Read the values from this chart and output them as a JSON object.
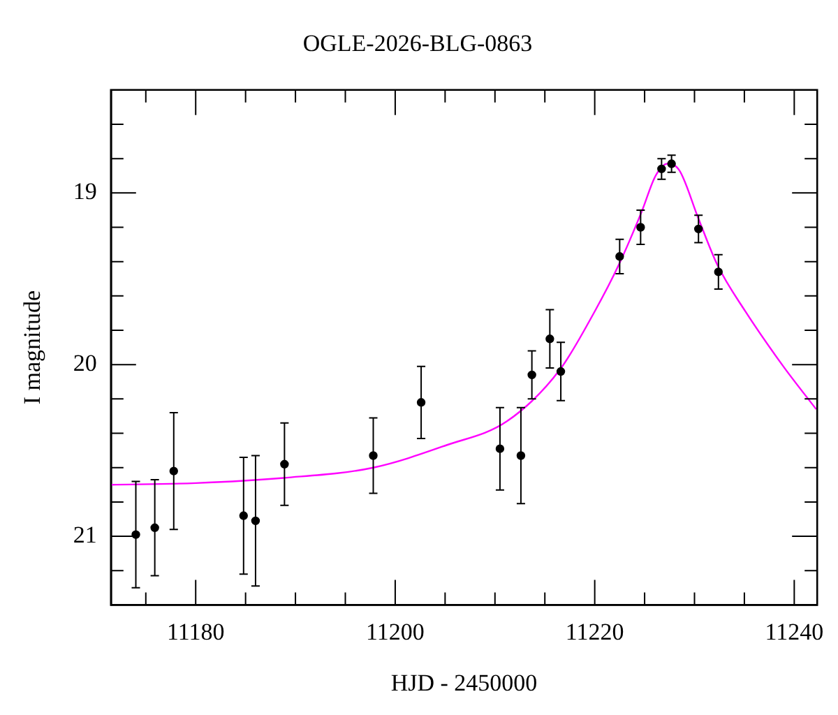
{
  "chart_data": {
    "type": "scatter",
    "title": "OGLE-2026-BLG-0863",
    "xlabel": "HJD - 2450000",
    "ylabel": "I magnitude",
    "xlim": [
      11171.5,
      11242.3
    ],
    "xticks": [
      {
        "value": 11175,
        "label": null
      },
      11180,
      {
        "value": 11185,
        "label": null
      },
      {
        "value": 11190,
        "label": null
      },
      {
        "value": 11195,
        "label": null
      },
      11200,
      {
        "value": 11205,
        "label": null
      },
      {
        "value": 11210,
        "label": null
      },
      {
        "value": 11215,
        "label": null
      },
      11220,
      {
        "value": 11225,
        "label": null
      },
      {
        "value": 11230,
        "label": null
      },
      {
        "value": 11235,
        "label": null
      },
      11240
    ],
    "ylim": [
      21.4,
      18.4
    ],
    "yticks": [
      {
        "value": 18.6,
        "label": null
      },
      {
        "value": 18.8,
        "label": null
      },
      19,
      {
        "value": 19.2,
        "label": null
      },
      {
        "value": 19.4,
        "label": null
      },
      {
        "value": 19.6,
        "label": null
      },
      {
        "value": 19.8,
        "label": null
      },
      20,
      {
        "value": 20.2,
        "label": null
      },
      {
        "value": 20.4,
        "label": null
      },
      {
        "value": 20.6,
        "label": null
      },
      {
        "value": 20.8,
        "label": null
      },
      21,
      {
        "value": 21.2,
        "label": null
      }
    ],
    "grid": false,
    "legend": false,
    "marker": "circle",
    "series": [
      {
        "type": "line",
        "marker": "none",
        "color": "#ff00ff",
        "x": [
          11171.5,
          11180,
          11188.8,
          11197.8,
          11205.1,
          11211.2,
          11216.5,
          11220,
          11222.4,
          11224.7,
          11226.1,
          11227.3,
          11228.5,
          11230.4,
          11232.3,
          11235.1,
          11238.9,
          11242.2
        ],
        "values": [
          20.7,
          20.69,
          20.66,
          20.6,
          20.47,
          20.33,
          20.03,
          19.69,
          19.42,
          19.11,
          18.9,
          18.83,
          18.87,
          19.15,
          19.42,
          19.69,
          20.01,
          20.26
        ]
      },
      {
        "color": "#000000",
        "x": [
          11174.0,
          11175.9,
          11177.8,
          11184.8,
          11186.0,
          11188.9,
          11197.8,
          11202.6,
          11210.5,
          11212.6,
          11213.7,
          11215.5,
          11216.6,
          11222.5,
          11224.6,
          11226.7,
          11227.7,
          11230.4,
          11232.4
        ],
        "values": [
          20.99,
          20.95,
          20.62,
          20.88,
          20.91,
          20.58,
          20.53,
          20.22,
          20.49,
          20.53,
          20.06,
          19.85,
          20.04,
          19.37,
          19.2,
          18.86,
          18.83,
          19.21,
          19.46
        ],
        "errors": [
          0.31,
          0.28,
          0.34,
          0.34,
          0.38,
          0.24,
          0.22,
          0.21,
          0.24,
          0.28,
          0.14,
          0.17,
          0.17,
          0.1,
          0.1,
          0.06,
          0.05,
          0.08,
          0.1
        ]
      }
    ]
  }
}
